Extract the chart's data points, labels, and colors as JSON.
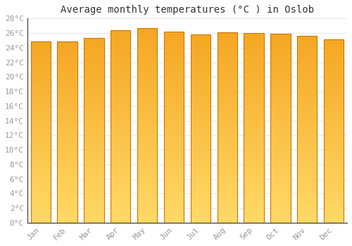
{
  "months": [
    "Jan",
    "Feb",
    "Mar",
    "Apr",
    "May",
    "Jun",
    "Jul",
    "Aug",
    "Sep",
    "Oct",
    "Nov",
    "Dec"
  ],
  "temperatures": [
    24.8,
    24.8,
    25.3,
    26.4,
    26.7,
    26.2,
    25.8,
    26.1,
    26.0,
    25.9,
    25.6,
    25.1
  ],
  "title": "Average monthly temperatures (°C ) in Oslob",
  "bar_bottom_color": "#FFD966",
  "bar_top_color": "#F5A623",
  "bar_edge_color": "#CC7700",
  "background_color": "#FFFFFF",
  "grid_color": "#DDDDDD",
  "ylim_min": 0,
  "ylim_max": 28,
  "ytick_step": 2,
  "title_fontsize": 10,
  "tick_fontsize": 8,
  "tick_color": "#999999",
  "font_family": "monospace"
}
